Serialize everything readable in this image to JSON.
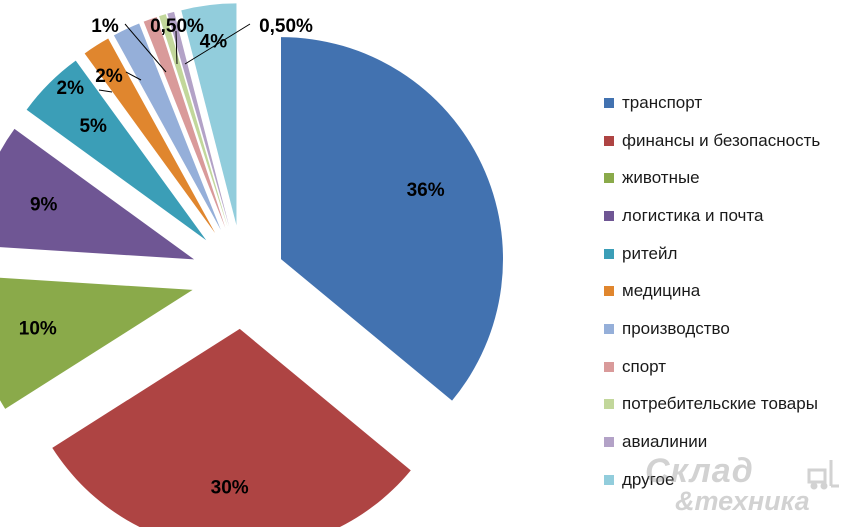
{
  "chart_data": {
    "type": "pie",
    "title": "",
    "exploded": true,
    "legend_position": "right",
    "slices": [
      {
        "label": "транспорт",
        "value": 36,
        "value_label": "36%",
        "color": "#4272B0"
      },
      {
        "label": "финансы и безопасность",
        "value": 30,
        "value_label": "30%",
        "color": "#AE4443"
      },
      {
        "label": "животные",
        "value": 10,
        "value_label": "10%",
        "color": "#8AAA4A"
      },
      {
        "label": "логистика и почта",
        "value": 9,
        "value_label": "9%",
        "color": "#6F5694"
      },
      {
        "label": "ритейл",
        "value": 5,
        "value_label": "5%",
        "color": "#3B9EB7"
      },
      {
        "label": "медицина",
        "value": 2,
        "value_label": "2%",
        "color": "#E0862E"
      },
      {
        "label": "производство",
        "value": 2,
        "value_label": "2%",
        "color": "#95AFD9"
      },
      {
        "label": "спорт",
        "value": 1,
        "value_label": "1%",
        "color": "#D99A9A"
      },
      {
        "label": "потребительские товары",
        "value": 0.5,
        "value_label": "0,50%",
        "color": "#C2D79B"
      },
      {
        "label": "авиалинии",
        "value": 0.5,
        "value_label": "0,50%",
        "color": "#B3A2C7"
      },
      {
        "label": "другое",
        "value": 4,
        "value_label": "4%",
        "color": "#92CDDC"
      }
    ]
  },
  "watermark": {
    "line1": "Склад",
    "line2": "&техника"
  }
}
